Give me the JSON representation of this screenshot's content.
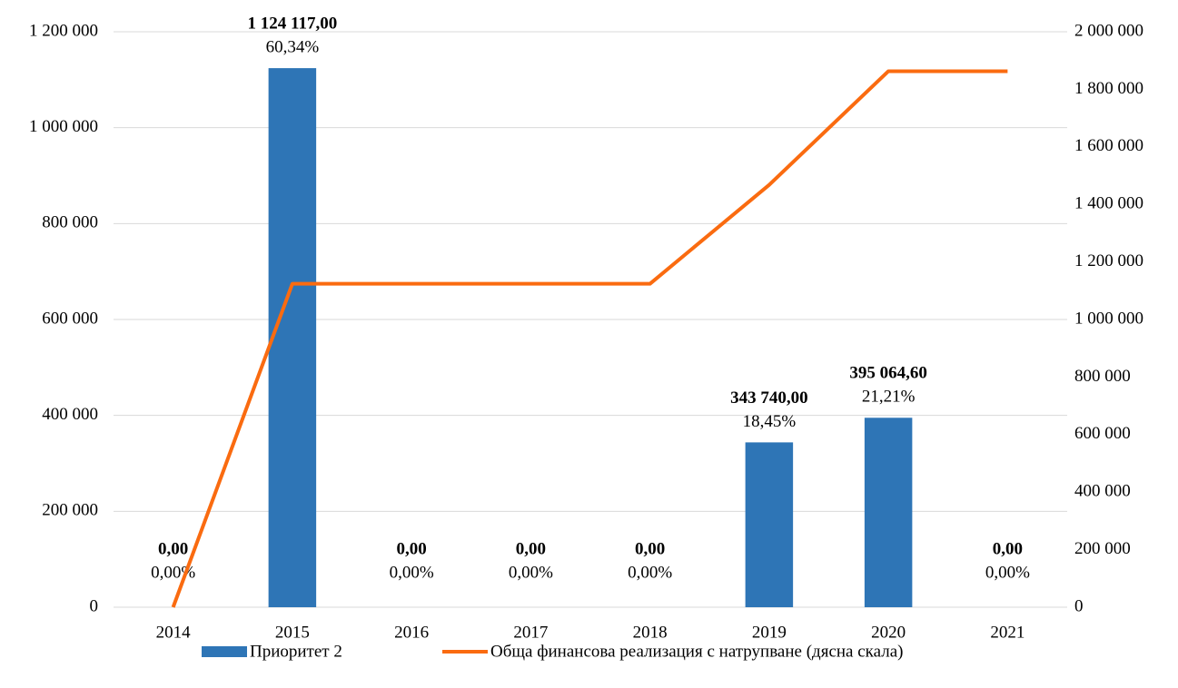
{
  "chart_data": {
    "type": "bar",
    "categories": [
      "2014",
      "2015",
      "2016",
      "2017",
      "2018",
      "2019",
      "2020",
      "2021"
    ],
    "series": [
      {
        "name": "Приоритет 2",
        "type": "bar",
        "color": "#2e75b6",
        "values": [
          0,
          1124117,
          0,
          0,
          0,
          343740,
          395064.6,
          0
        ],
        "value_labels": [
          "0,00",
          "1 124 117,00",
          "0,00",
          "0,00",
          "0,00",
          "343 740,00",
          "395 064,60",
          "0,00"
        ],
        "percent_values": [
          0,
          60.34,
          0,
          0,
          0,
          18.45,
          21.21,
          0
        ],
        "percent_labels": [
          "0,00%",
          "60,34%",
          "0,00%",
          "0,00%",
          "0,00%",
          "18,45%",
          "21,21%",
          "0,00%"
        ]
      },
      {
        "name": "Обща финансова реализация с натрупване (дясна скала)",
        "type": "line",
        "color": "#fa6b10",
        "axis": "y2",
        "values": [
          0,
          1124117,
          1124117,
          1124117,
          1124117,
          1467857,
          1862921.6,
          1862921.6
        ]
      }
    ],
    "ylim": [
      0,
      1200000
    ],
    "yticks": [
      0,
      {
        "value": 200000,
        "label": "200 000"
      },
      {
        "value": 400000,
        "label": "400 000"
      },
      {
        "value": 600000,
        "label": "600 000"
      },
      {
        "value": 800000,
        "label": "800 000"
      },
      {
        "value": 1000000,
        "label": "1 000 000"
      },
      {
        "value": 1200000,
        "label": "1 200 000"
      }
    ],
    "y2lim": [
      0,
      2000000
    ],
    "y2ticks": [
      0,
      {
        "value": 200000,
        "label": "200 000"
      },
      {
        "value": 400000,
        "label": "400 000"
      },
      {
        "value": 600000,
        "label": "600 000"
      },
      {
        "value": 800000,
        "label": "800 000"
      },
      {
        "value": 1000000,
        "label": "1 000 000"
      },
      {
        "value": 1200000,
        "label": "1 200 000"
      },
      {
        "value": 1400000,
        "label": "1 400 000"
      },
      {
        "value": 1600000,
        "label": "1 600 000"
      },
      {
        "value": 1800000,
        "label": "1 800 000"
      },
      {
        "value": 2000000,
        "label": "2 000 000"
      }
    ],
    "grid": true,
    "legend": "bottom"
  }
}
